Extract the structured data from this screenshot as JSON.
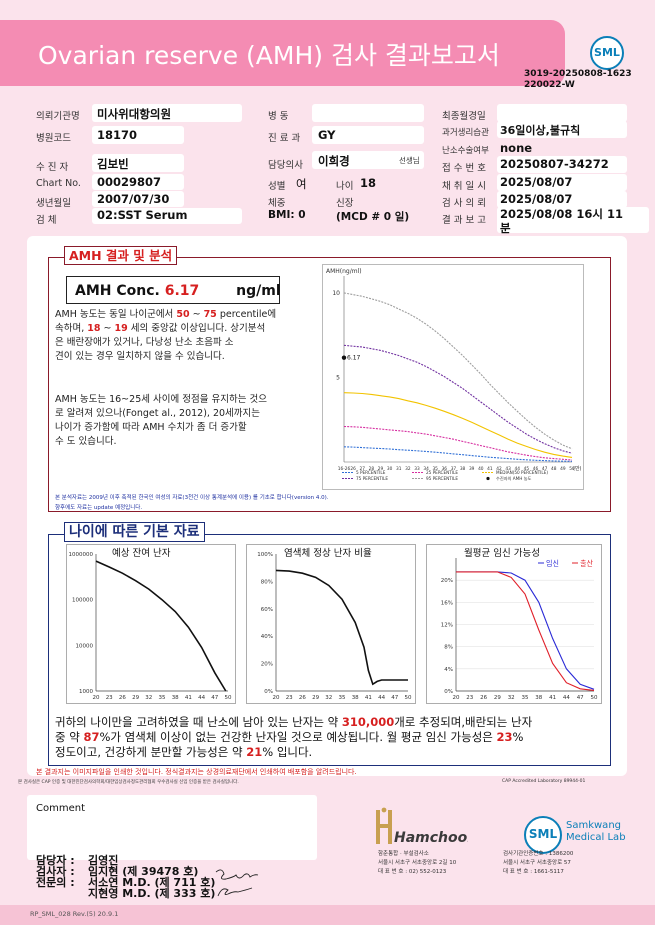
{
  "header": {
    "title": "Ovarian reserve (AMH) 검사 결과보고서",
    "logo": "SML",
    "report_no_line1": "3019-20250808-1623",
    "report_no_line2": "220022-W"
  },
  "info": {
    "hospital_label": "의뢰기관명",
    "hospital": "미사위대항의원",
    "hospital_code_label": "병원코드",
    "hospital_code": "18170",
    "doctor_label": "수 진 자",
    "doctor": "김보빈",
    "chart_label": "Chart No.",
    "chart": "00029807",
    "birth_label": "생년월일",
    "birth": "2007/07/30",
    "specimen_label": "검 체",
    "specimen": "02:SST Serum",
    "ward_label": "병 동",
    "ward": "",
    "dept_label": "진 료 과",
    "dept": "GY",
    "physician_label": "담당의사",
    "physician": "이희경",
    "physician_suffix": "선생님",
    "sex_label": "성별",
    "sex": "여",
    "age_label": "나이",
    "age": "18",
    "weight_label": "체중",
    "height_label": "신장",
    "bmi": "BMI: 0",
    "mcd": "(MCD # 0 일)",
    "last_menses_label": "최종월경일",
    "last_menses": "",
    "past_history_label": "과거생리습관",
    "past_history": "36일이상,불규칙",
    "removal_label": "난소수술여부",
    "removal": "none",
    "receipt_label": "접 수 번 호",
    "receipt": "20250807-34272",
    "collect_label": "채 취 일 시",
    "collect": "2025/08/07",
    "test_label": "검 사 의 뢰",
    "test": "2025/08/07",
    "result_label": "결 과 보 고",
    "result_line1": "2025/08/08 16시 11",
    "result_line2": "분"
  },
  "analysis": {
    "section_title": "AMH 결과 및 분석",
    "conc_label": "AMH Conc.",
    "conc_value": "6.17",
    "conc_unit": "ng/ml",
    "text1_a": "AMH 농도는 동일 나이군에서 ",
    "pct_low": "50",
    "tilde": " ~ ",
    "pct_high": "75",
    "text1_b": " percentile에",
    "text1_c": "속하며, ",
    "age_low": "18",
    "age_high": "19",
    "text1_d": " 세의 중앙값 이상입니다. 상기분석",
    "text1_e": "은 배란장애가 있거나, 다낭성 난소 초음파 소",
    "text1_f": "견이 있는 경우 일치하지 않을 수 있습니다.",
    "text2_a": "AMH 농도는 16~25세 사이에 정점을 유지하는 것으",
    "text2_b": "로 알려져 있으나(Fonget al., 2012), 20세까지는",
    "text2_c": "나이가 증가함에 따라 AMH 수치가 좀 더 증가할",
    "text2_d": "수 도 있습니다.",
    "footnote1": "본 분석자료는 2009년 이후 축적된 한국인 여성의 자료(3천건 이상 통계분석에 이용) 를 기초로 합니다(version 4.0).",
    "footnote2": "향후에도 자료는 update 예정입니다."
  },
  "chart_data": [
    {
      "type": "line",
      "ylabel": "AMH(ng/ml)",
      "x": [
        16,
        26,
        27,
        28,
        29,
        30,
        31,
        32,
        33,
        34,
        35,
        36,
        37,
        38,
        39,
        40,
        41,
        42,
        43,
        44,
        45,
        46,
        47,
        48,
        49,
        50
      ],
      "x_ticks": [
        "16-26",
        "26",
        "27",
        "28",
        "29",
        "30",
        "31",
        "32",
        "33",
        "34",
        "35",
        "36",
        "37",
        "38",
        "39",
        "40",
        "41",
        "42",
        "43",
        "44",
        "45",
        "46",
        "47",
        "48",
        "49",
        "50"
      ],
      "x_suffix": "(만)",
      "y_ticks": [
        5,
        10
      ],
      "ylim": [
        0,
        11
      ],
      "series": [
        {
          "name": "5 PERCENTILE",
          "color": "#2f6fd6",
          "values": [
            0.9,
            0.88,
            0.85,
            0.82,
            0.8,
            0.77,
            0.73,
            0.7,
            0.66,
            0.62,
            0.58,
            0.53,
            0.48,
            0.43,
            0.38,
            0.33,
            0.28,
            0.24,
            0.2,
            0.16,
            0.13,
            0.1,
            0.08,
            0.06,
            0.05,
            0.04
          ]
        },
        {
          "name": "25 PERCENTILE",
          "color": "#d62ea0",
          "values": [
            2.1,
            2.08,
            2.05,
            2.0,
            1.95,
            1.9,
            1.85,
            1.8,
            1.72,
            1.65,
            1.55,
            1.45,
            1.35,
            1.22,
            1.1,
            0.97,
            0.85,
            0.72,
            0.6,
            0.5,
            0.4,
            0.32,
            0.25,
            0.2,
            0.16,
            0.12
          ]
        },
        {
          "name": "MEDIAN(50 PERCENTILE)",
          "color": "#f2c300",
          "values": [
            4.1,
            4.08,
            4.05,
            4.0,
            3.92,
            3.85,
            3.75,
            3.62,
            3.5,
            3.35,
            3.18,
            3.0,
            2.8,
            2.58,
            2.35,
            2.1,
            1.85,
            1.6,
            1.35,
            1.12,
            0.92,
            0.74,
            0.58,
            0.45,
            0.35,
            0.27
          ]
        },
        {
          "name": "75 PERCENTILE",
          "color": "#7030a0",
          "values": [
            6.9,
            6.85,
            6.8,
            6.7,
            6.6,
            6.45,
            6.3,
            6.1,
            5.9,
            5.65,
            5.35,
            5.05,
            4.7,
            4.35,
            3.95,
            3.55,
            3.15,
            2.75,
            2.35,
            2.0,
            1.65,
            1.35,
            1.08,
            0.85,
            0.66,
            0.52
          ]
        },
        {
          "name": "95 PERCENTILE",
          "color": "#9e9e9e",
          "values": [
            10.0,
            9.9,
            9.8,
            9.65,
            9.5,
            9.3,
            9.05,
            8.8,
            8.5,
            8.15,
            7.75,
            7.3,
            6.8,
            6.3,
            5.75,
            5.2,
            4.6,
            4.05,
            3.5,
            3.0,
            2.5,
            2.05,
            1.65,
            1.3,
            1.0,
            0.78
          ]
        }
      ],
      "marker": {
        "name": "수진자의 AMH 농도",
        "x": 16,
        "y": 6.17,
        "label": "6.17"
      }
    },
    {
      "type": "line",
      "title": "예상 잔여 난자",
      "x_ticks": [
        20,
        23,
        26,
        29,
        32,
        35,
        38,
        41,
        44,
        47,
        50
      ],
      "y_ticks": [
        "1000000",
        "100000",
        "10000",
        "1000"
      ],
      "y_log": true,
      "x": [
        20,
        23,
        26,
        29,
        32,
        35,
        38,
        41,
        44,
        47,
        49.5
      ],
      "values": [
        700000,
        520000,
        380000,
        260000,
        170000,
        100000,
        55000,
        25000,
        9000,
        2500,
        1000
      ]
    },
    {
      "type": "line",
      "title": "염색체 정상 난자 비율",
      "x_ticks": [
        20,
        23,
        26,
        29,
        32,
        35,
        38,
        41,
        44,
        47,
        50
      ],
      "y_ticks": [
        "100%",
        "80%",
        "60%",
        "40%",
        "20%",
        "0%"
      ],
      "x": [
        20,
        23,
        26,
        29,
        32,
        35,
        38,
        40,
        41,
        42,
        43,
        44,
        47,
        50
      ],
      "values": [
        88,
        87.5,
        86,
        83,
        77,
        67,
        50,
        32,
        15,
        5,
        7,
        8,
        8,
        8
      ]
    },
    {
      "type": "line",
      "title": "월평균 임신 가능성",
      "legend": [
        "임신",
        "출산"
      ],
      "x_ticks": [
        20,
        23,
        26,
        29,
        32,
        35,
        38,
        41,
        44,
        47,
        50
      ],
      "y_ticks": [
        "20%",
        "16%",
        "12%",
        "8%",
        "4%",
        "0%"
      ],
      "x": [
        20,
        23,
        26,
        29,
        32,
        35,
        38,
        41,
        44,
        47,
        50
      ],
      "series": [
        {
          "name": "임신",
          "color": "#2a2ad6",
          "values": [
            21.5,
            21.5,
            21.5,
            21.5,
            21.3,
            20.0,
            16.0,
            9.5,
            4.0,
            1.2,
            0.3
          ]
        },
        {
          "name": "출산",
          "color": "#e0202a",
          "values": [
            21.5,
            21.5,
            21.5,
            21.5,
            20.5,
            17.5,
            11.0,
            5.0,
            1.5,
            0.4,
            0.1
          ]
        }
      ]
    }
  ],
  "basic": {
    "section_title": "나이에 따른 기본 자료",
    "sum_a": "귀하의 나이만을 고려하였을 때 난소에 남아 있는 난자는 약 ",
    "eggs": "310,000",
    "sum_b": "개로 추정되며,배란되는 난자",
    "sum_c": "중 약 ",
    "normal_pct": "87",
    "sum_d": "%가 염색체 이상이 없는 건강한 난자일 것으로 예상됩니다. 월 평균 임신 가능성은 ",
    "preg_pct": "23",
    "sum_e": "%",
    "sum_f": "정도이고, 건강하게 분만할 가능성은 약 ",
    "birth_pct": "21",
    "sum_g": "% 입니다."
  },
  "notes": {
    "note1": "본 결과지는 이미지파일을 인쇄한 것입니다. 정식결과지는 상경의료재단에서 인쇄하여 배포함을 알려드립니다.",
    "note2": "본 검사실은 CAP 인증 및 대한진단검사의학회/대한임상검사정도관리협회 우수검사실 신임 인증을 받은 검사실입니다.",
    "cap": "CAP Accredited Laboratory 89944-01"
  },
  "bottom": {
    "comment_label": "Comment",
    "signers": [
      {
        "role": "담당자 :",
        "name": "김영진"
      },
      {
        "role": "검사자 :",
        "name": "임지현 (제 39478 호)"
      },
      {
        "role": "전문의 :",
        "name": "서소연 M.D. (제 711 호)"
      },
      {
        "role": "",
        "name": "지현영 M.D. (제 333 호)"
      }
    ],
    "hamchoon_logo": "Hamchoon",
    "hamchoon_line1": "함춘통합 · 부설검사소",
    "hamchoon_line2": "서울시 서초구 서초중앙로 2길 10",
    "hamchoon_line3": "대 표 번 호 : 02) 552-0123",
    "sml_logo": "SML",
    "sml_name1": "Samkwang",
    "sml_name2": "Medical Lab",
    "sml_line1": "검사기관인증번호 : 1386200",
    "sml_line2": "서울시 서초구 서초중앙로 57",
    "sml_line3": "대 표 번 호 : 1661-5117",
    "form_code": "RP_SML_028 Rev.(5) 20.9.1"
  }
}
